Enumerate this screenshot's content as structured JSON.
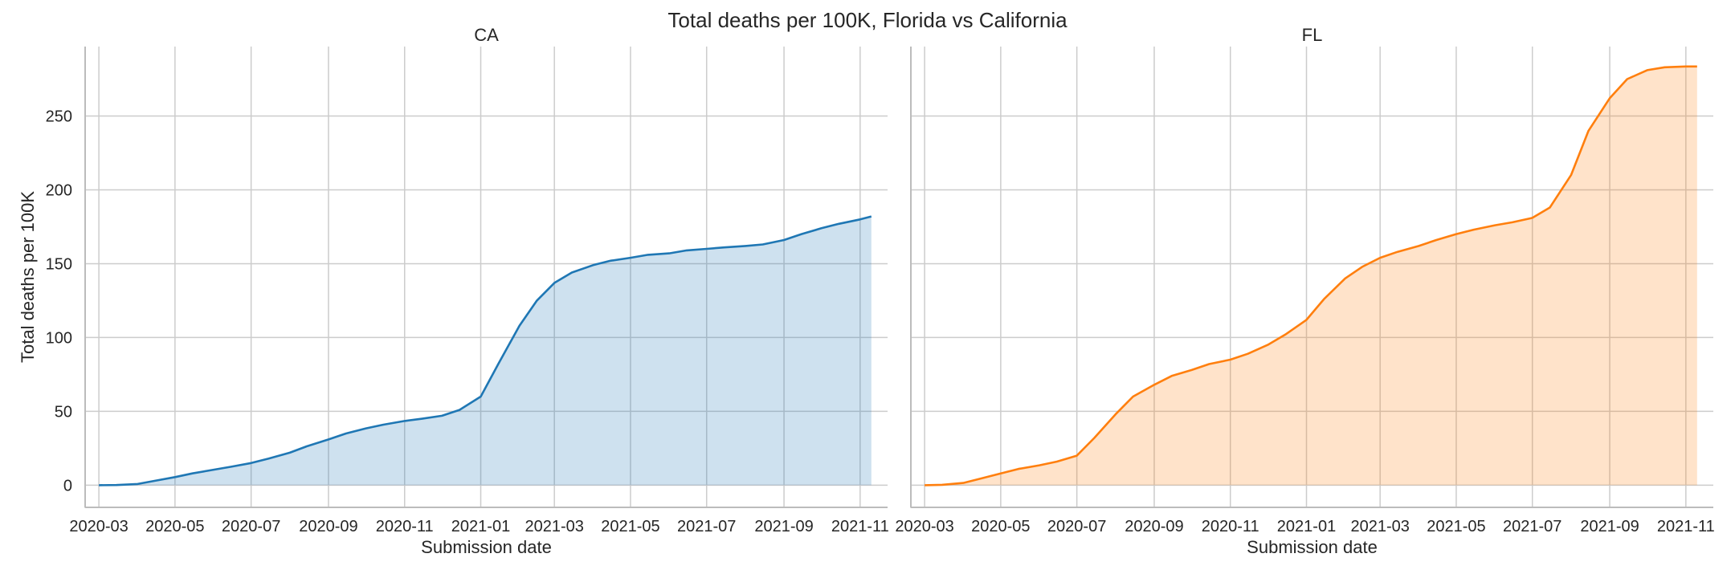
{
  "figure_title": "Total deaths per 100K, Florida vs California",
  "chart_data": [
    {
      "type": "area",
      "title": "CA",
      "xlabel": "Submission date",
      "ylabel": "Total deaths per 100K",
      "x_ticks": [
        "2020-03",
        "2020-05",
        "2020-07",
        "2020-09",
        "2020-11",
        "2021-01",
        "2021-03",
        "2021-05",
        "2021-07",
        "2021-09",
        "2021-11"
      ],
      "y_ticks": [
        0,
        50,
        100,
        150,
        200,
        250
      ],
      "ylim": [
        -15,
        297
      ],
      "xlim": [
        "2020-02-19",
        "2021-11-23"
      ],
      "grid": true,
      "color": "#1f77b4",
      "fill_color": "#1f77b4",
      "series": [
        {
          "x": [
            "2020-03-01",
            "2020-03-15",
            "2020-04-01",
            "2020-04-15",
            "2020-05-01",
            "2020-05-15",
            "2020-06-01",
            "2020-06-15",
            "2020-07-01",
            "2020-07-15",
            "2020-08-01",
            "2020-08-15",
            "2020-09-01",
            "2020-09-15",
            "2020-10-01",
            "2020-10-15",
            "2020-11-01",
            "2020-11-15",
            "2020-12-01",
            "2020-12-15",
            "2021-01-01",
            "2021-01-15",
            "2021-02-01",
            "2021-02-15",
            "2021-03-01",
            "2021-03-15",
            "2021-04-01",
            "2021-04-15",
            "2021-05-01",
            "2021-05-15",
            "2021-06-01",
            "2021-06-15",
            "2021-07-01",
            "2021-07-15",
            "2021-08-01",
            "2021-08-15",
            "2021-09-01",
            "2021-09-15",
            "2021-10-01",
            "2021-10-15",
            "2021-11-01",
            "2021-11-10"
          ],
          "y": [
            0,
            0.1,
            0.8,
            3,
            5.5,
            8,
            10.5,
            12.5,
            15,
            18,
            22,
            26.5,
            31,
            35,
            38.5,
            41,
            43.5,
            45,
            47,
            51,
            60,
            82,
            108,
            125,
            137,
            144,
            149,
            152,
            154,
            156,
            157,
            159,
            160,
            161,
            162,
            163,
            166,
            170,
            174,
            177,
            180,
            182
          ]
        }
      ]
    },
    {
      "type": "area",
      "title": "FL",
      "xlabel": "Submission date",
      "ylabel": "",
      "x_ticks": [
        "2020-03",
        "2020-05",
        "2020-07",
        "2020-09",
        "2020-11",
        "2021-01",
        "2021-03",
        "2021-05",
        "2021-07",
        "2021-09",
        "2021-11"
      ],
      "y_ticks": [
        0,
        50,
        100,
        150,
        200,
        250
      ],
      "ylim": [
        -15,
        297
      ],
      "xlim": [
        "2020-02-19",
        "2021-11-23"
      ],
      "grid": true,
      "color": "#ff7f0e",
      "fill_color": "#ff7f0e",
      "series": [
        {
          "x": [
            "2020-03-01",
            "2020-03-15",
            "2020-04-01",
            "2020-04-15",
            "2020-05-01",
            "2020-05-15",
            "2020-06-01",
            "2020-06-15",
            "2020-07-01",
            "2020-07-15",
            "2020-08-01",
            "2020-08-15",
            "2020-09-01",
            "2020-09-15",
            "2020-10-01",
            "2020-10-15",
            "2020-11-01",
            "2020-11-15",
            "2020-12-01",
            "2020-12-15",
            "2021-01-01",
            "2021-01-15",
            "2021-02-01",
            "2021-02-15",
            "2021-03-01",
            "2021-03-15",
            "2021-04-01",
            "2021-04-15",
            "2021-05-01",
            "2021-05-15",
            "2021-06-01",
            "2021-06-15",
            "2021-07-01",
            "2021-07-15",
            "2021-08-01",
            "2021-08-15",
            "2021-09-01",
            "2021-09-15",
            "2021-10-01",
            "2021-10-15",
            "2021-11-01",
            "2021-11-10"
          ],
          "y": [
            0,
            0.3,
            1.5,
            4.5,
            8,
            11,
            13.5,
            16,
            20,
            32,
            48,
            60,
            68,
            74,
            78,
            82,
            85,
            89,
            95,
            102,
            112,
            126,
            140,
            148,
            154,
            158,
            162,
            166,
            170,
            173,
            176,
            178,
            181,
            188,
            210,
            240,
            262,
            275,
            281,
            283,
            283.5,
            283.5
          ]
        }
      ]
    }
  ]
}
